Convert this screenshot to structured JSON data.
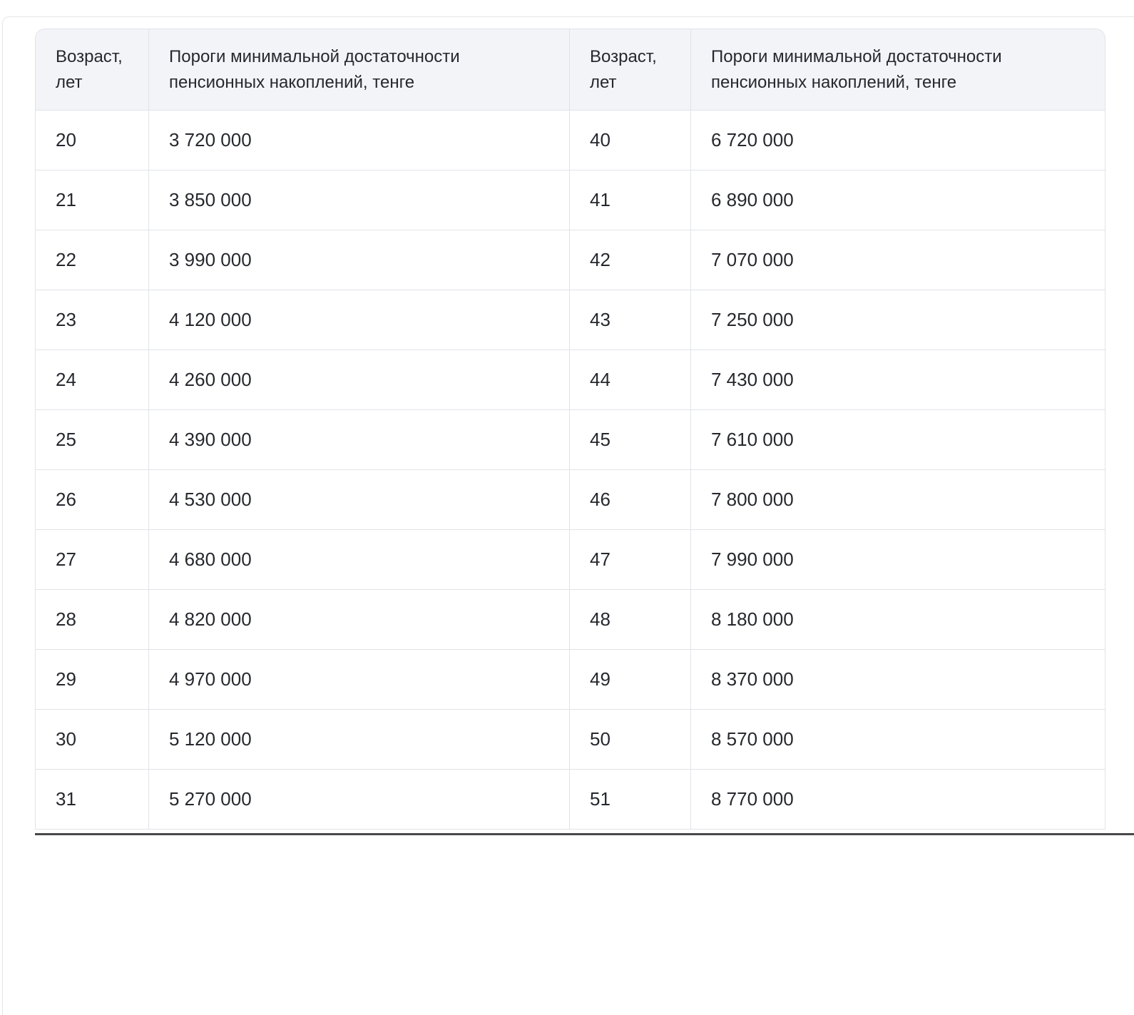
{
  "page": {
    "background_color": "#ffffff",
    "frame_border_color": "#e4e5e9",
    "bottom_divider_color": "#47474b",
    "header_bg_color": "#f3f4f8",
    "border_color": "#e1e3e9",
    "text_color": "#26282e"
  },
  "table": {
    "header_age_lines": [
      "Возраст,",
      "лет"
    ],
    "header_threshold_lines": [
      "Пороги минимальной достаточности",
      "пенсионных накоплений, тенге"
    ],
    "columns": [
      "Возраст, лет",
      "Пороги минимальной достаточности пенсионных накоплений, тенге",
      "Возраст, лет",
      "Пороги минимальной достаточности пенсионных накоплений, тенге"
    ],
    "rows": [
      {
        "age_l": "20",
        "val_l": "3 720 000",
        "age_r": "40",
        "val_r": "6 720 000"
      },
      {
        "age_l": "21",
        "val_l": "3 850 000",
        "age_r": "41",
        "val_r": "6 890 000"
      },
      {
        "age_l": "22",
        "val_l": "3 990 000",
        "age_r": "42",
        "val_r": "7 070 000"
      },
      {
        "age_l": "23",
        "val_l": "4 120 000",
        "age_r": "43",
        "val_r": "7 250 000"
      },
      {
        "age_l": "24",
        "val_l": "4 260 000",
        "age_r": "44",
        "val_r": "7 430 000"
      },
      {
        "age_l": "25",
        "val_l": "4 390 000",
        "age_r": "45",
        "val_r": "7 610 000"
      },
      {
        "age_l": "26",
        "val_l": "4 530 000",
        "age_r": "46",
        "val_r": "7 800 000"
      },
      {
        "age_l": "27",
        "val_l": "4 680 000",
        "age_r": "47",
        "val_r": "7 990 000"
      },
      {
        "age_l": "28",
        "val_l": "4 820 000",
        "age_r": "48",
        "val_r": "8 180 000"
      },
      {
        "age_l": "29",
        "val_l": "4 970 000",
        "age_r": "49",
        "val_r": "8 370 000"
      },
      {
        "age_l": "30",
        "val_l": "5 120 000",
        "age_r": "50",
        "val_r": "8 570 000"
      },
      {
        "age_l": "31",
        "val_l": "5 270 000",
        "age_r": "51",
        "val_r": "8 770 000"
      }
    ]
  }
}
